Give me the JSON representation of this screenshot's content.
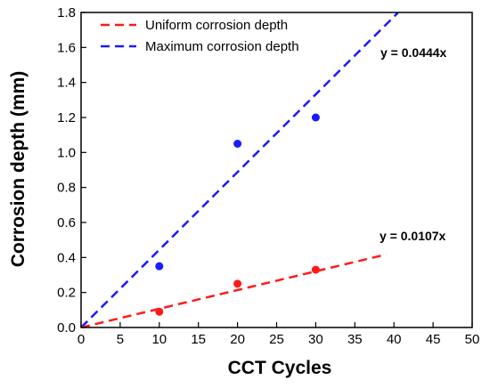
{
  "chart_data": {
    "type": "scatter",
    "xlabel": "CCT Cycles",
    "ylabel": "Corrosion depth (mm)",
    "xlim": [
      0,
      50
    ],
    "ylim": [
      0.0,
      1.8
    ],
    "xticks": [
      0,
      5,
      10,
      15,
      20,
      25,
      30,
      35,
      40,
      45,
      50
    ],
    "yticks": [
      0.0,
      0.2,
      0.4,
      0.6,
      0.8,
      1.0,
      1.2,
      1.4,
      1.6,
      1.8
    ],
    "xtick_labels": [
      "0",
      "5",
      "10",
      "15",
      "20",
      "25",
      "30",
      "35",
      "40",
      "45",
      "50"
    ],
    "ytick_labels": [
      "0.0",
      "0.2",
      "0.4",
      "0.6",
      "0.8",
      "1.0",
      "1.2",
      "1.4",
      "1.6",
      "1.8"
    ],
    "grid": false,
    "legend_position": "top-left",
    "series": [
      {
        "name": "Maximum corrosion depth",
        "color": "#1a1aff",
        "points": [
          {
            "x": 10,
            "y": 0.35
          },
          {
            "x": 20,
            "y": 1.05
          },
          {
            "x": 30,
            "y": 1.2
          }
        ],
        "fit": {
          "slope": 0.0444,
          "x_range": [
            0,
            40.5
          ],
          "style": "dashed"
        },
        "equation": "y = 0.0444x"
      },
      {
        "name": "Uniform corrosion depth",
        "color": "#ff1a1a",
        "points": [
          {
            "x": 10,
            "y": 0.09
          },
          {
            "x": 20,
            "y": 0.25
          },
          {
            "x": 30,
            "y": 0.33
          }
        ],
        "fit": {
          "slope": 0.0107,
          "x_range": [
            0,
            39
          ],
          "style": "dashed"
        },
        "equation": "y = 0.0107x"
      }
    ],
    "legend": [
      {
        "label": "Uniform corrosion depth",
        "color": "#ff1a1a"
      },
      {
        "label": "Maximum corrosion depth",
        "color": "#1a1aff"
      }
    ]
  }
}
